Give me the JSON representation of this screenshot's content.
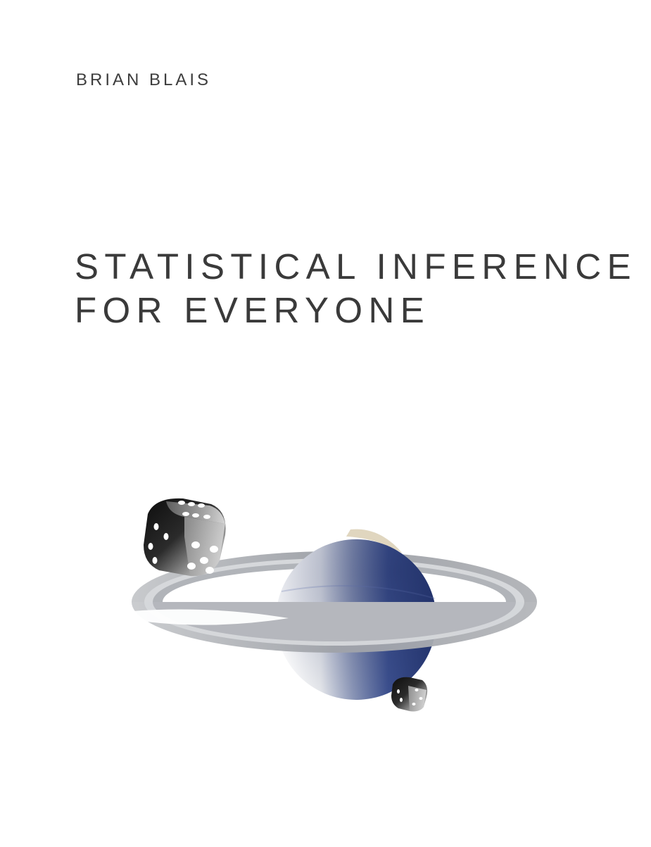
{
  "cover": {
    "author": "BRIAN BLAIS",
    "title_line_1": "STATISTICAL INFERENCE",
    "title_line_2": "FOR EVERYONE"
  },
  "illustration": {
    "elements": [
      "large-die",
      "ringed-planet",
      "small-die"
    ],
    "colors": {
      "planet_blue": "#2b3f7e",
      "ring_gray": "#a9abb0",
      "die_dark": "#1c1c1c"
    }
  }
}
